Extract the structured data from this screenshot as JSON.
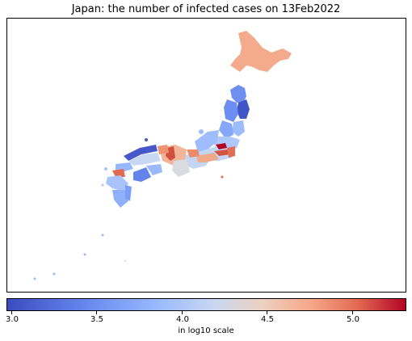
{
  "title": "Japan: the number of infected cases on 13Feb2022",
  "colorbar": {
    "label": "in log10 scale",
    "ticks": [
      "3.0",
      "3.5",
      "4.0",
      "4.5",
      "5.0"
    ],
    "range": [
      2.95,
      5.3
    ],
    "colormap": "coolwarm",
    "colors": [
      "#3b4cc0",
      "#6788ee",
      "#9abbff",
      "#c9d7f0",
      "#edd1c2",
      "#f7a889",
      "#e26952",
      "#b40426"
    ]
  }
}
